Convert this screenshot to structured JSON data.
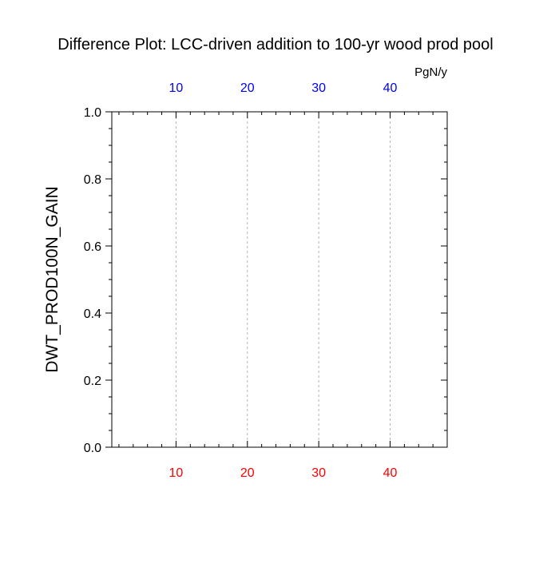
{
  "chart_data": {
    "type": "line",
    "title": "Difference Plot: LCC-driven addition to 100-yr wood prod pool",
    "ylabel": "DWT_PROD100N_GAIN",
    "top_axis_unit": "PgN/y",
    "xlim": [
      1,
      48
    ],
    "ylim": [
      0.0,
      1.0
    ],
    "x_ticks": [
      10,
      20,
      30,
      40
    ],
    "x_ticks_labels": [
      "10",
      "20",
      "30",
      "40"
    ],
    "y_ticks": [
      0.0,
      0.2,
      0.4,
      0.6,
      0.8,
      1.0
    ],
    "y_ticks_labels": [
      "0.0",
      "0.2",
      "0.4",
      "0.6",
      "0.8",
      "1.0"
    ],
    "x_minor_step": 2,
    "y_minor_step": 0.05,
    "grid": "vertical-dashed",
    "series": [],
    "colors": {
      "bottom_axis_labels": "#ff0000",
      "top_axis_labels": "#0000ff",
      "grid": "#b4b4b4",
      "axis": "#000000"
    }
  }
}
